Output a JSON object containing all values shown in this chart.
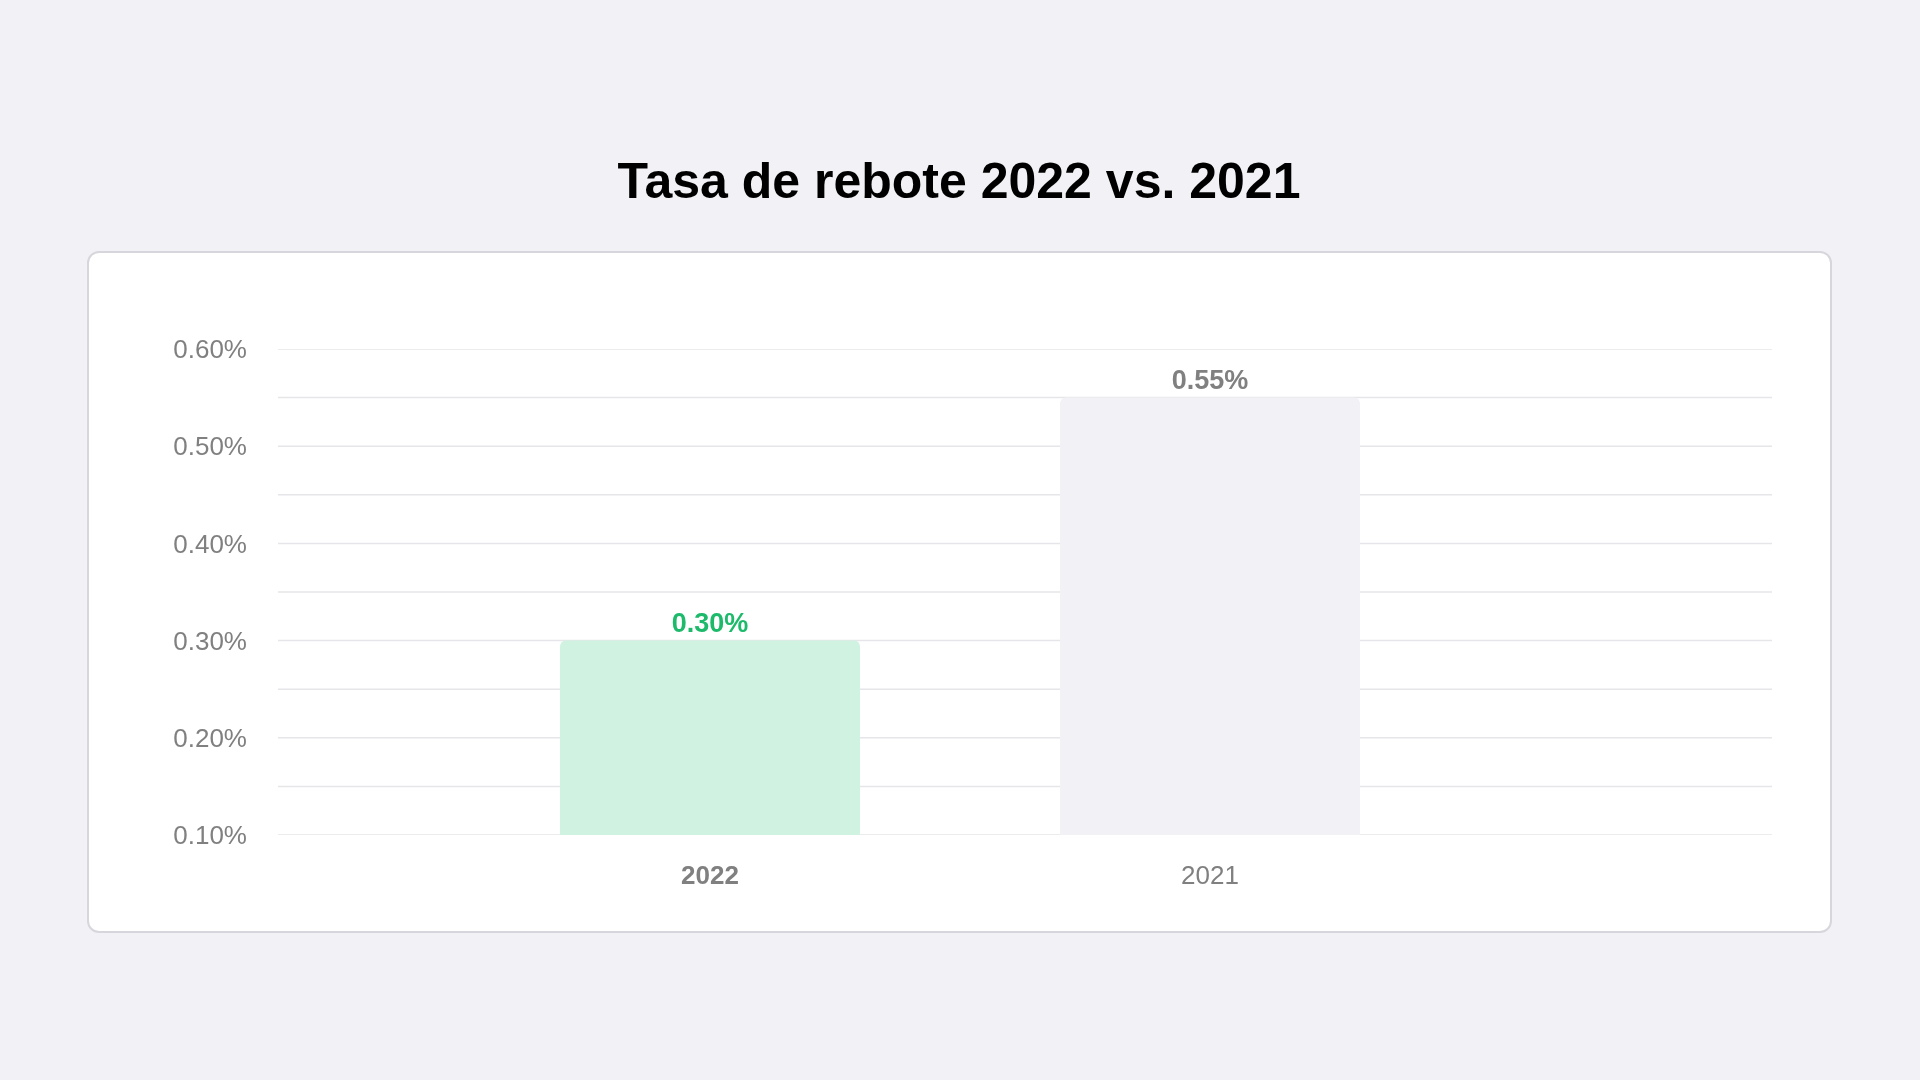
{
  "chart_data": {
    "type": "bar",
    "title": "Tasa de rebote 2022 vs. 2021",
    "categories": [
      "2022",
      "2021"
    ],
    "values": [
      0.3,
      0.55
    ],
    "colors": [
      "#d0f2e1",
      "#f2f2f6"
    ],
    "value_labels": [
      "0.30%",
      "0.55%"
    ],
    "ylim": [
      0.1,
      0.6
    ],
    "yticks": [
      {
        "value": 0.1,
        "label": "0.10%"
      },
      {
        "value": 0.15,
        "label": null
      },
      {
        "value": 0.2,
        "label": "0.20%"
      },
      {
        "value": 0.25,
        "label": null
      },
      {
        "value": 0.3,
        "label": "0.30%"
      },
      {
        "value": 0.35,
        "label": null
      },
      {
        "value": 0.4,
        "label": "0.40%"
      },
      {
        "value": 0.45,
        "label": null
      },
      {
        "value": 0.5,
        "label": "0.50%"
      },
      {
        "value": 0.55,
        "label": null
      },
      {
        "value": 0.6,
        "label": "0.60%"
      }
    ],
    "grid": "y"
  }
}
